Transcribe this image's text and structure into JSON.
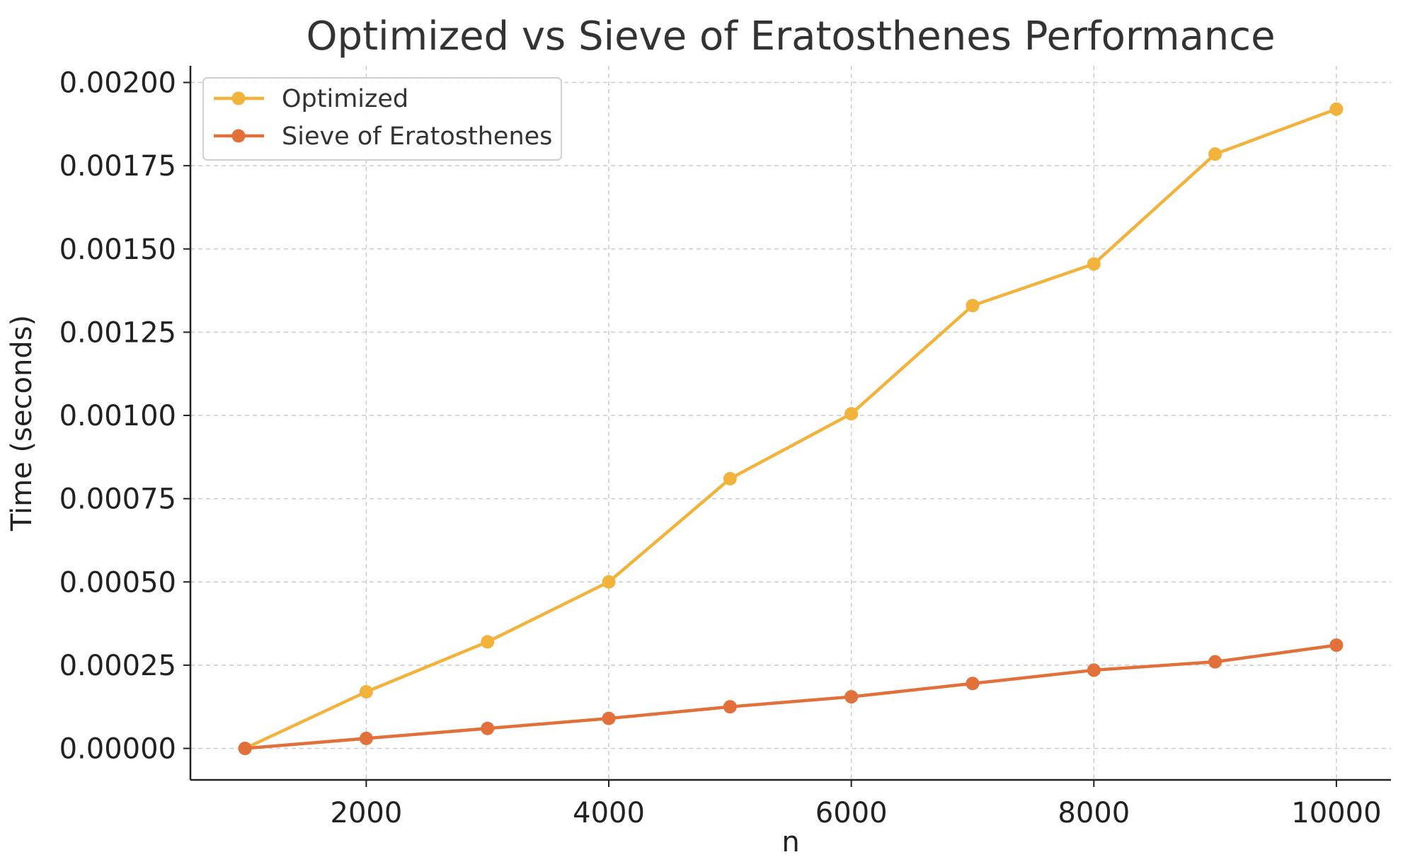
{
  "chart_data": {
    "type": "line",
    "title": "Optimized vs Sieve of Eratosthenes Performance",
    "xlabel": "n",
    "ylabel": "Time (seconds)",
    "x": [
      1000,
      2000,
      3000,
      4000,
      5000,
      6000,
      7000,
      8000,
      9000,
      10000
    ],
    "xlim": [
      550,
      10450
    ],
    "ylim": [
      -9.46e-05,
      0.00205
    ],
    "x_ticks": [
      2000,
      4000,
      6000,
      8000,
      10000
    ],
    "x_tick_labels": [
      "2000",
      "4000",
      "6000",
      "8000",
      "10000"
    ],
    "y_ticks": [
      0,
      0.00025,
      0.0005,
      0.00075,
      0.001,
      0.00125,
      0.0015,
      0.00175,
      0.002
    ],
    "y_tick_labels": [
      "0.00000",
      "0.00025",
      "0.00050",
      "0.00075",
      "0.00100",
      "0.00125",
      "0.00150",
      "0.00175",
      "0.00200"
    ],
    "grid": true,
    "legend_position": "top-left",
    "series": [
      {
        "name": "Optimized",
        "color": "#F2B33D",
        "values": [
          0.0,
          0.00017,
          0.00032,
          0.0005,
          0.00081,
          0.001005,
          0.00133,
          0.001455,
          0.001785,
          0.00192
        ]
      },
      {
        "name": "Sieve of Eratosthenes",
        "color": "#E2703A",
        "values": [
          0.0,
          3e-05,
          6e-05,
          9e-05,
          0.000125,
          0.000155,
          0.000195,
          0.000235,
          0.00026,
          0.00031
        ]
      }
    ]
  }
}
